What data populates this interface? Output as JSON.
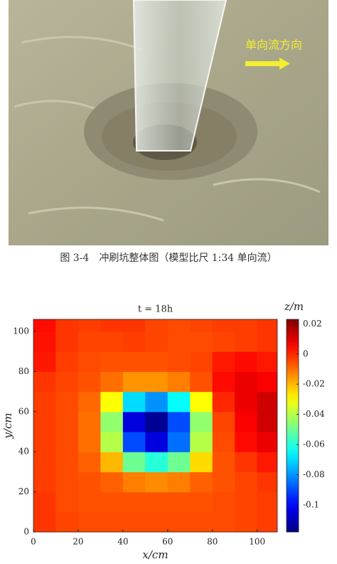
{
  "photo": {
    "label": "单向流方向"
  },
  "caption": "图 3-4　冲刷坑整体图（模型比尺 1:34 单向流）",
  "chart_data": {
    "type": "heatmap",
    "title": "t = 18h",
    "xlabel": "x/cm",
    "ylabel": "y/cm",
    "colorbar_label": "z/m",
    "x": [
      5,
      15,
      25,
      35,
      45,
      55,
      65,
      75,
      85,
      95,
      105
    ],
    "y": [
      5,
      15,
      25,
      35,
      45,
      55,
      65,
      75,
      85,
      95,
      105
    ],
    "z": [
      [
        -0.002,
        -0.004,
        -0.005,
        -0.005,
        -0.005,
        -0.005,
        -0.005,
        -0.005,
        -0.005,
        -0.004,
        -0.003
      ],
      [
        -0.002,
        -0.005,
        -0.006,
        -0.006,
        -0.006,
        -0.006,
        -0.006,
        -0.006,
        -0.005,
        -0.004,
        -0.003
      ],
      [
        -0.003,
        -0.005,
        -0.006,
        -0.008,
        -0.012,
        -0.014,
        -0.012,
        -0.008,
        -0.006,
        -0.004,
        -0.002
      ],
      [
        -0.003,
        -0.005,
        -0.008,
        -0.02,
        -0.05,
        -0.06,
        -0.05,
        -0.025,
        -0.006,
        -0.002,
        0.002
      ],
      [
        -0.003,
        -0.005,
        -0.01,
        -0.04,
        -0.09,
        -0.105,
        -0.085,
        -0.04,
        -0.005,
        0.004,
        0.008
      ],
      [
        -0.003,
        -0.005,
        -0.01,
        -0.045,
        -0.105,
        -0.115,
        -0.09,
        -0.045,
        -0.004,
        0.006,
        0.012
      ],
      [
        -0.003,
        -0.005,
        -0.009,
        -0.03,
        -0.07,
        -0.08,
        -0.065,
        -0.03,
        0.0,
        0.008,
        0.012
      ],
      [
        -0.002,
        -0.004,
        -0.006,
        -0.01,
        -0.015,
        -0.015,
        -0.012,
        -0.006,
        0.004,
        0.008,
        0.006
      ],
      [
        0.002,
        -0.003,
        -0.005,
        -0.006,
        -0.006,
        -0.006,
        -0.005,
        -0.004,
        0.002,
        0.004,
        0.002
      ],
      [
        0.003,
        -0.002,
        -0.004,
        -0.004,
        -0.003,
        -0.004,
        -0.005,
        -0.005,
        -0.004,
        -0.003,
        -0.002
      ],
      [
        0.004,
        -0.002,
        -0.003,
        -0.002,
        -0.002,
        -0.004,
        -0.005,
        -0.004,
        -0.003,
        -0.003,
        -0.002
      ]
    ],
    "xlim": [
      0,
      109
    ],
    "ylim": [
      0,
      106
    ],
    "xticks": [
      0,
      20,
      40,
      60,
      80,
      100
    ],
    "yticks": [
      0,
      20,
      40,
      60,
      80,
      100
    ],
    "clim": [
      -0.118,
      0.023
    ],
    "cticks": [
      0.02,
      0,
      -0.02,
      -0.04,
      -0.06,
      -0.08,
      -0.1
    ],
    "colormap": "jet"
  }
}
